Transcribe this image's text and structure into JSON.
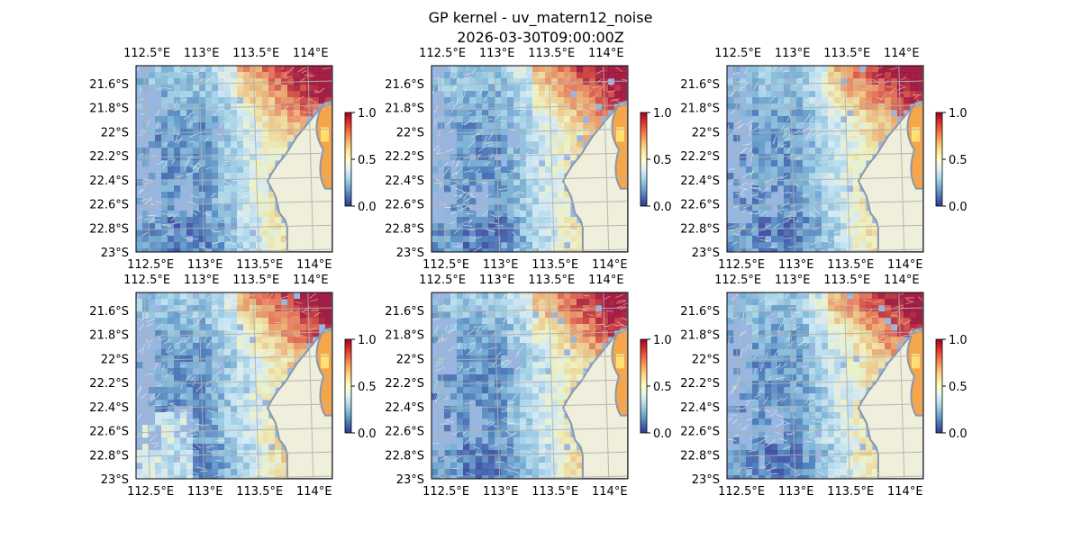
{
  "figure": {
    "title": "GP kernel - uv_matern12_noise",
    "subtitle": "2026-03-30T09:00:00Z"
  },
  "map": {
    "lon_ticks": [
      "112.5°E",
      "113°E",
      "113.5°E",
      "114°E"
    ],
    "lat_ticks": [
      "21.6°S",
      "21.8°S",
      "22°S",
      "22.2°S",
      "22.4°S",
      "22.6°S",
      "22.8°S",
      "23°S"
    ],
    "lon_tick_values": [
      112.5,
      113.0,
      113.5,
      114.0
    ],
    "lat_tick_values": [
      -21.6,
      -21.8,
      -22.0,
      -22.2,
      -22.4,
      -22.6,
      -22.8,
      -23.0
    ],
    "extent": {
      "lon": [
        112.4,
        114.2
      ],
      "lat": [
        -23.0,
        -21.45
      ]
    },
    "gridlines": true,
    "land_color": "#efefdb",
    "nodata_color": "#98b6e0",
    "coast_color": "#8a96aa",
    "vectors": "uv current arrows"
  },
  "colorbar": {
    "colormap": "RdYlBu_r",
    "ticks": [
      "0.0",
      "0.5",
      "1.0"
    ],
    "tick_values": [
      0.0,
      0.5,
      1.0
    ],
    "range": [
      0.0,
      1.0
    ]
  },
  "panels": [
    {
      "id": "panel-1",
      "seed": 11
    },
    {
      "id": "panel-2",
      "seed": 23
    },
    {
      "id": "panel-3",
      "seed": 37
    },
    {
      "id": "panel-4",
      "seed": 41
    },
    {
      "id": "panel-5",
      "seed": 53
    },
    {
      "id": "panel-6",
      "seed": 67
    }
  ]
}
